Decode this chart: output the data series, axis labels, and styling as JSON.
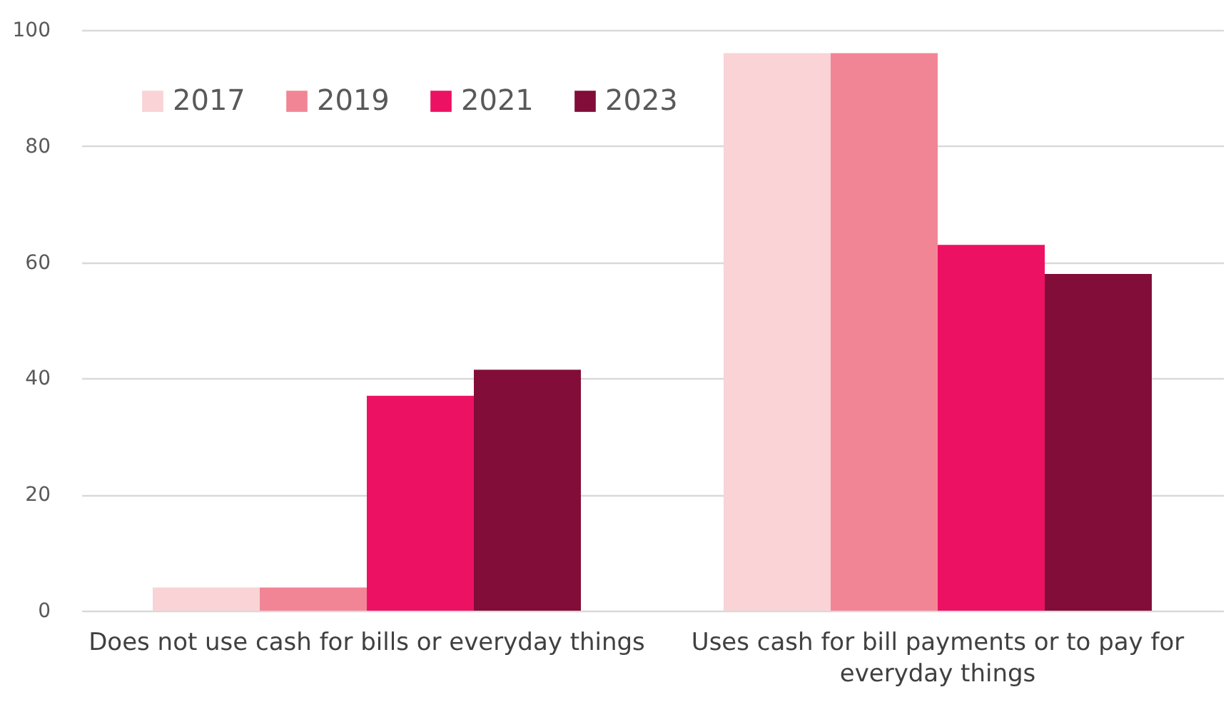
{
  "chart_data": {
    "type": "bar",
    "categories": [
      "Does not use cash for bills or everyday things",
      "Uses cash for bill payments or to pay for everyday things"
    ],
    "series": [
      {
        "name": "2017",
        "color": "#f9d3d6",
        "values": [
          4,
          96
        ]
      },
      {
        "name": "2019",
        "color": "#f28595",
        "values": [
          4,
          96
        ]
      },
      {
        "name": "2021",
        "color": "#ed1164",
        "values": [
          37,
          63
        ]
      },
      {
        "name": "2023",
        "color": "#820d38",
        "values": [
          41.5,
          58
        ]
      }
    ],
    "ylim": [
      0,
      100
    ],
    "yticks": [
      0,
      20,
      40,
      60,
      80,
      100
    ],
    "grid": "y",
    "legend": "top left"
  }
}
